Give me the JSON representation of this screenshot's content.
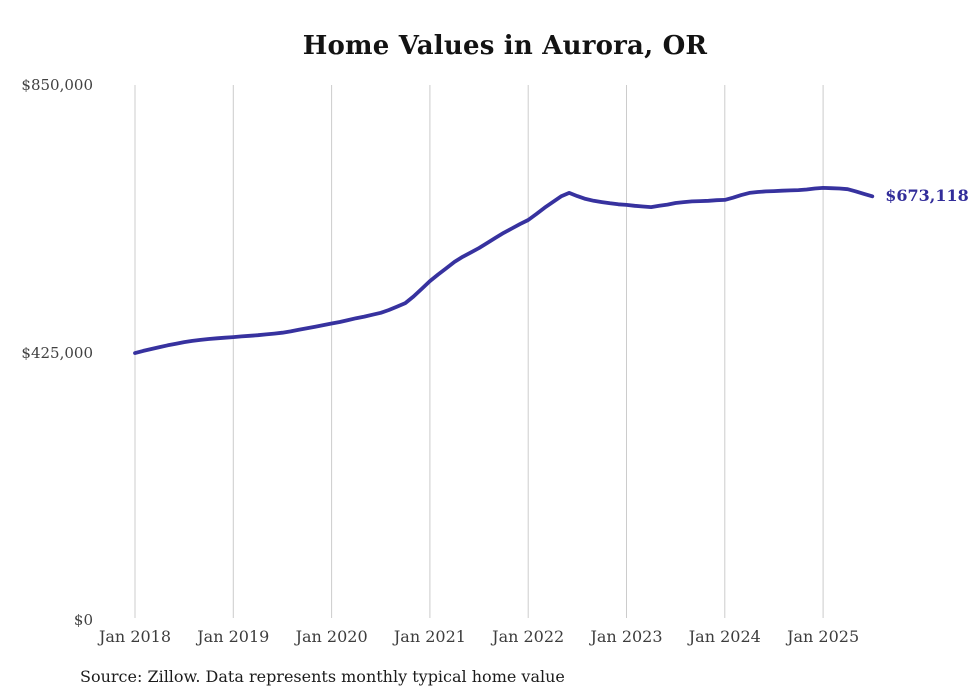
{
  "chart": {
    "title": "Home Values in Aurora, OR",
    "source_note": "Source: Zillow. Data represents monthly typical home value",
    "end_label": "$673,118",
    "colors": {
      "line": "#37329f",
      "grid": "#cccccc",
      "y_tick_text": "#414141",
      "x_tick_text": "#3d3d3d",
      "title_text": "#131313",
      "end_label_text": "#322d9a",
      "source_text": "#1c1c1c",
      "background": "#ffffff"
    }
  },
  "chart_data": {
    "type": "line",
    "title": "Home Values in Aurora, OR",
    "xlabel": "",
    "ylabel": "",
    "ylim": [
      0,
      850000
    ],
    "grid": "vertical-only",
    "legend_position": "none",
    "frequency": "monthly",
    "x_start": "Jan 2018",
    "x_end": "Jul 2025",
    "x_tick_labels": [
      "Jan 2018",
      "Jan 2019",
      "Jan 2020",
      "Jan 2021",
      "Jan 2022",
      "Jan 2023",
      "Jan 2024",
      "Jan 2025"
    ],
    "y_tick_labels": [
      "$850,000",
      "$425,000",
      "$0"
    ],
    "y_tick_values": [
      850000,
      425000,
      0
    ],
    "latest_value": 673118,
    "latest_value_label": "$673,118",
    "series": [
      {
        "name": "Typical home value",
        "values": [
          424000,
          427500,
          430500,
          433500,
          436500,
          439000,
          441500,
          443500,
          445000,
          446500,
          447500,
          448500,
          449500,
          450500,
          451500,
          452500,
          453800,
          455000,
          456500,
          458500,
          461000,
          463500,
          466000,
          468500,
          471000,
          473500,
          476500,
          479500,
          482000,
          485000,
          488000,
          492500,
          498000,
          503500,
          514000,
          526000,
          538500,
          549000,
          559000,
          569000,
          577000,
          584000,
          591000,
          599000,
          607000,
          615000,
          622000,
          629000,
          635500,
          645000,
          655000,
          664000,
          673000,
          678500,
          673500,
          669000,
          666000,
          664000,
          662000,
          660500,
          659500,
          658000,
          657000,
          656000,
          658000,
          660000,
          662500,
          664000,
          665000,
          665500,
          666000,
          667000,
          667500,
          671000,
          675000,
          678500,
          680000,
          681000,
          681500,
          682000,
          682500,
          683000,
          684000,
          685500,
          686500,
          686000,
          685500,
          684500,
          681000,
          677000,
          673118
        ]
      }
    ]
  }
}
